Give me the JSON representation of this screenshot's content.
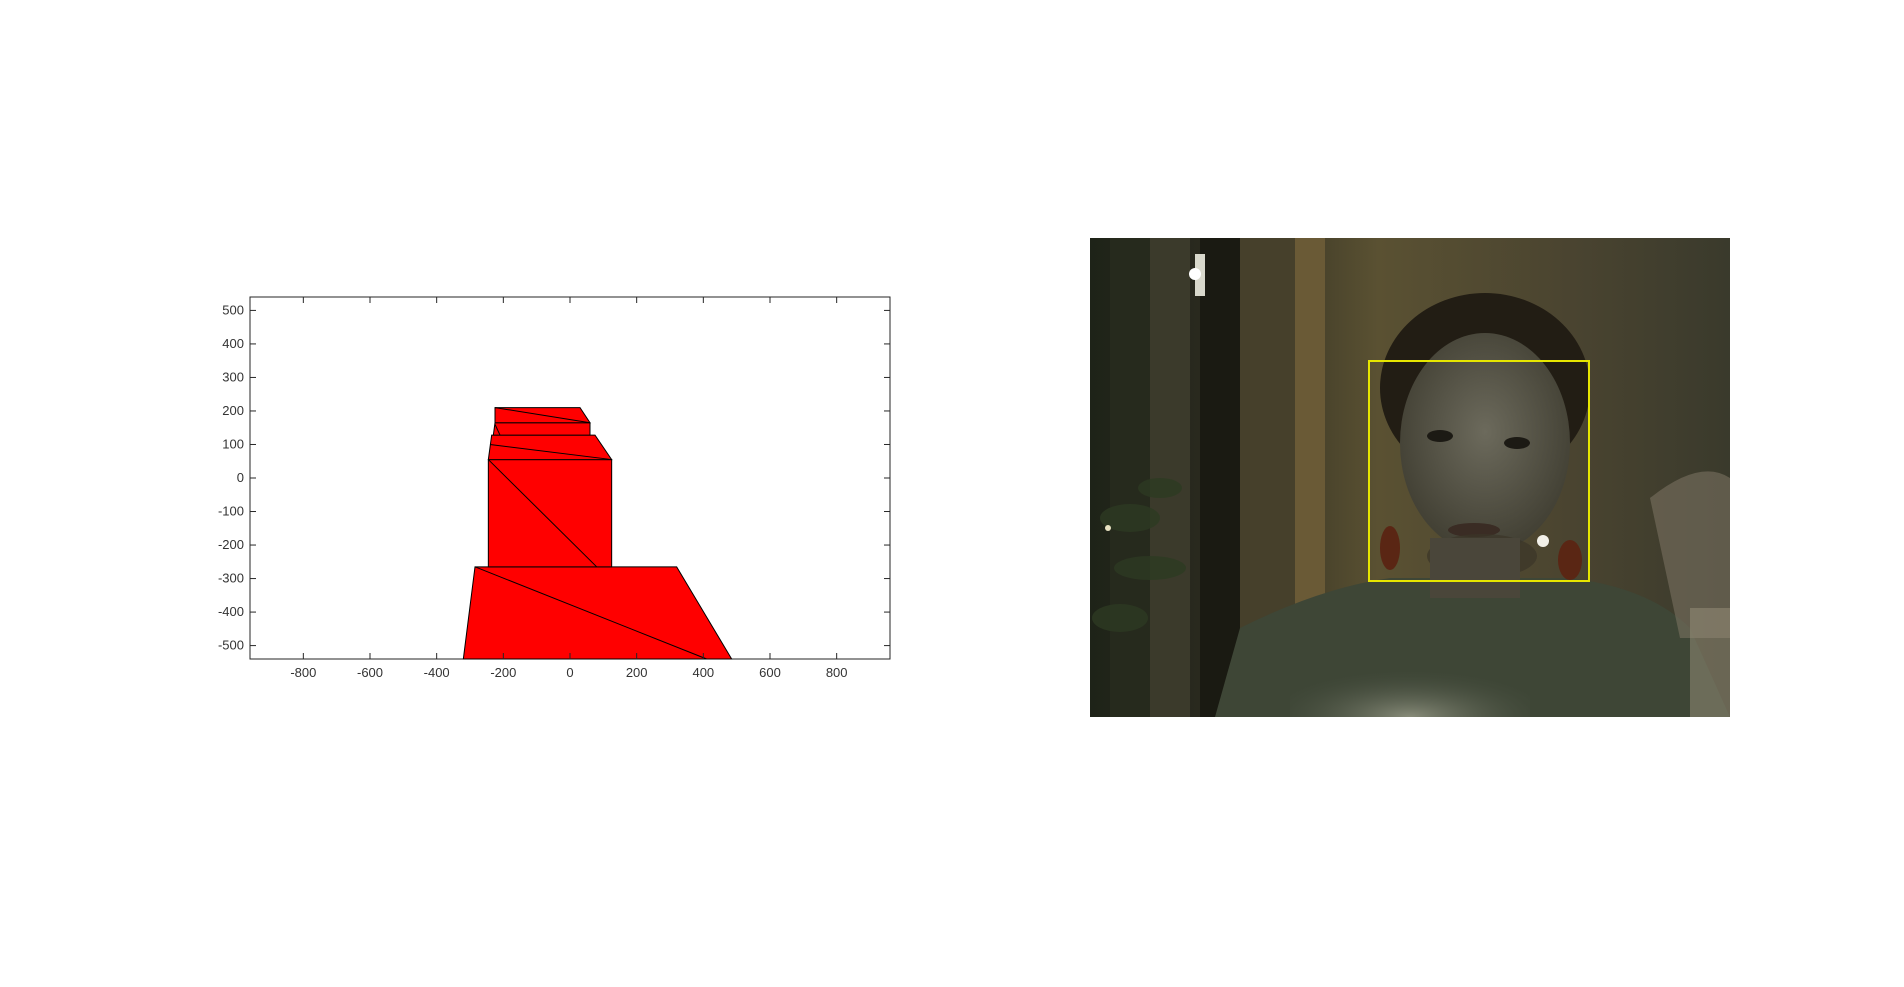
{
  "figure": {
    "background": "#ffffff"
  },
  "left_plot": {
    "type": "patch-3d-view",
    "xlim": [
      -960,
      960
    ],
    "ylim": [
      -540,
      540
    ],
    "xticks": [
      -800,
      -600,
      -400,
      -200,
      0,
      200,
      400,
      600,
      800
    ],
    "yticks": [
      500,
      400,
      300,
      200,
      100,
      0,
      -100,
      -200,
      -300,
      -400,
      -500
    ],
    "xtick_labels": [
      "-800",
      "-600",
      "-400",
      "-200",
      "0",
      "200",
      "400",
      "600",
      "800"
    ],
    "ytick_labels": [
      "500",
      "400",
      "300",
      "200",
      "100",
      "0",
      "-100",
      "-200",
      "-300",
      "-400",
      "-500"
    ],
    "face_color": "#ff0000",
    "edge_color": "#000000"
  },
  "chart_data": {
    "type": "area",
    "title": "",
    "xlabel": "",
    "ylabel": "",
    "xlim": [
      -960,
      960
    ],
    "ylim": [
      -540,
      540
    ],
    "grid": false,
    "faces": [
      {
        "name": "",
        "polygon": [
          [
            -320,
            -540
          ],
          [
            -285,
            -265
          ],
          [
            320,
            -265
          ],
          [
            485,
            -540
          ]
        ]
      },
      {
        "name": "",
        "polygon": [
          [
            -245,
            -265
          ],
          [
            -245,
            55
          ],
          [
            125,
            55
          ],
          [
            125,
            -265
          ]
        ]
      },
      {
        "name": "",
        "polygon": [
          [
            -245,
            55
          ],
          [
            -235,
            128
          ],
          [
            75,
            128
          ],
          [
            125,
            55
          ]
        ]
      },
      {
        "name": "",
        "polygon": [
          [
            -230,
            128
          ],
          [
            -225,
            165
          ],
          [
            60,
            165
          ],
          [
            60,
            128
          ]
        ]
      },
      {
        "name": "",
        "polygon": [
          [
            -225,
            165
          ],
          [
            -225,
            210
          ],
          [
            30,
            210
          ],
          [
            60,
            165
          ]
        ]
      }
    ],
    "edges": [
      [
        [
          -285,
          -265
        ],
        [
          410,
          -540
        ]
      ],
      [
        [
          -245,
          55
        ],
        [
          80,
          -265
        ]
      ],
      [
        [
          -240,
          100
        ],
        [
          125,
          55
        ]
      ],
      [
        [
          -225,
          160
        ],
        [
          -210,
          128
        ]
      ],
      [
        [
          -225,
          210
        ],
        [
          60,
          165
        ]
      ]
    ]
  },
  "right_panel": {
    "type": "webcam-frame",
    "detection_box_color": "#e6e600",
    "background_colors": [
      "#1b1d14",
      "#3a3a2a",
      "#4a4430",
      "#2a2c22"
    ]
  }
}
